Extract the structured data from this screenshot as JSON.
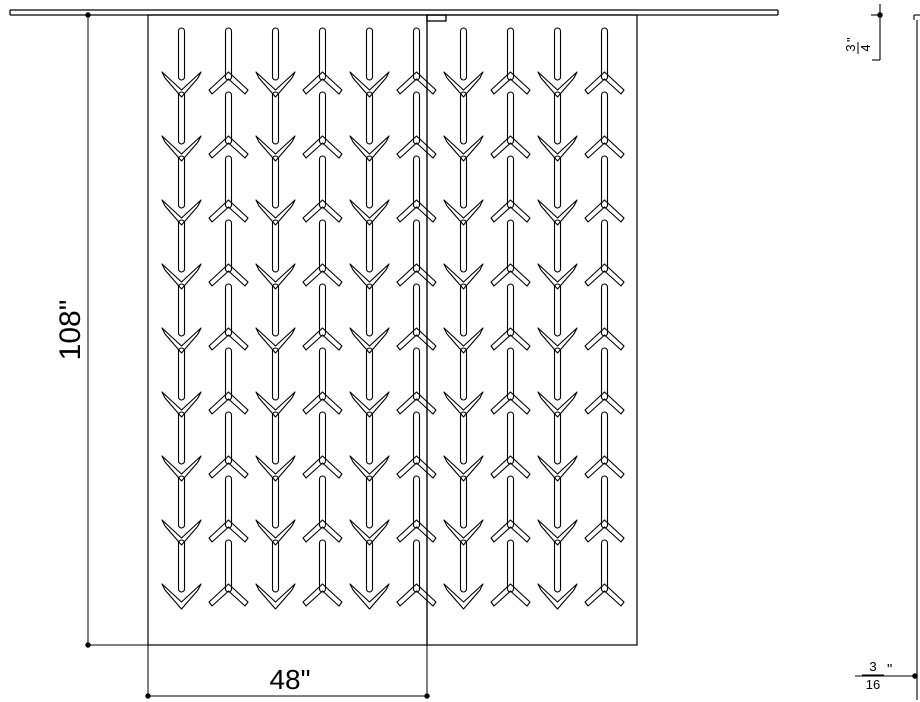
{
  "dimensions": {
    "height": "108\"",
    "width": "48\"",
    "thickness": {
      "numerator": "3",
      "denominator": "4",
      "inch_mark": "\""
    },
    "gap": {
      "numerator": "3",
      "denominator": "16",
      "inch_mark": "\""
    }
  },
  "pattern": {
    "columns_per_panel": 5,
    "rows": 9,
    "panels": 2
  },
  "colors": {
    "line": "#000000",
    "background": "#ffffff"
  }
}
